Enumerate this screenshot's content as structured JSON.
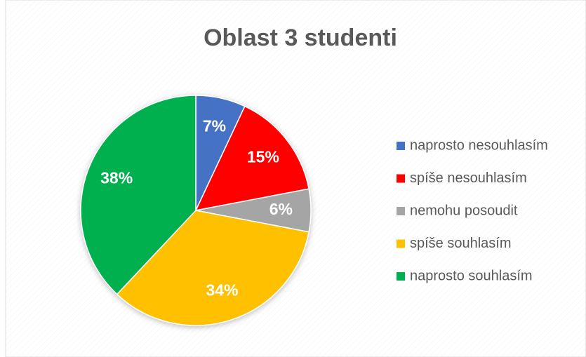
{
  "chart_data": {
    "type": "pie",
    "title": "Oblast 3 studenti",
    "categories": [
      "naprosto nesouhlasím",
      "spíše nesouhlasím",
      "nemohu posoudit",
      "spíše souhlasím",
      "naprosto souhlasím"
    ],
    "values": [
      7,
      15,
      6,
      34,
      38
    ],
    "value_labels": [
      "7%",
      "15%",
      "6%",
      "34%",
      "38%"
    ],
    "colors": [
      "#4472c4",
      "#ff0000",
      "#a5a5a5",
      "#ffc000",
      "#00b050"
    ],
    "legend": "right"
  }
}
